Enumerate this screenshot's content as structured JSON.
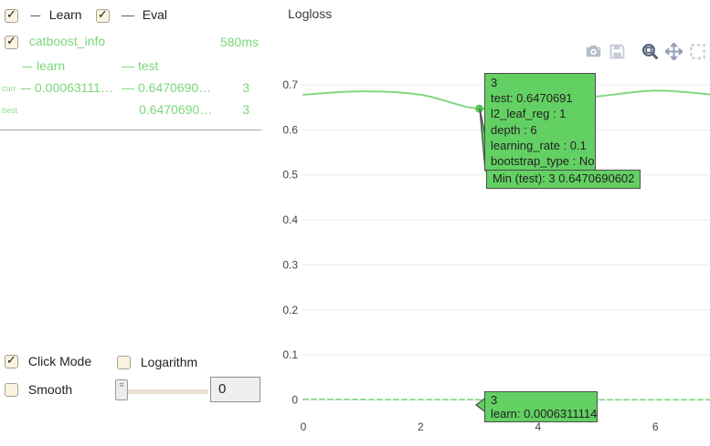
{
  "colors": {
    "accent_green_text": "#7bd67b",
    "curve_test": "#7fd87f",
    "curve_learn": "#8fdf8f",
    "tooltip_bg": "#63d063",
    "tooltip_border": "#4d4d4d"
  },
  "legend": {
    "items": [
      {
        "dash": "---",
        "label": "Learn",
        "checked": true
      },
      {
        "dash": "—",
        "label": "Eval",
        "checked": true
      }
    ]
  },
  "series_panel": {
    "name": "catboost_info",
    "time": "580ms",
    "checked": true,
    "columns": {
      "learn_dash": "---",
      "learn": "learn",
      "test_dash": "—",
      "test": "test"
    },
    "rows": {
      "curr": {
        "tag": "curr",
        "learn_dash": "---",
        "learn": "0.00063111…",
        "test_dash": "—",
        "test": "0.6470690…",
        "iteration": "3"
      },
      "best": {
        "tag": "best",
        "test": "0.6470690…",
        "iteration": "3"
      }
    }
  },
  "controls": {
    "click_mode": {
      "label": "Click Mode",
      "checked": true
    },
    "logarithm": {
      "label": "Logarithm",
      "checked": false
    },
    "smooth": {
      "label": "Smooth",
      "checked": false
    },
    "slider": {
      "value": "0"
    }
  },
  "chart": {
    "title": "Logloss",
    "modebar": [
      "camera",
      "save",
      "zoom",
      "pan",
      "box-select"
    ]
  },
  "tooltips": {
    "test": {
      "lines": [
        "3",
        "test: 0.6470691",
        "l2_leaf_reg : 1",
        "depth : 6",
        "learning_rate : 0.1",
        "bootstrap_type : No"
      ],
      "min_line": "Min (test): 3 0.6470690602"
    },
    "learn": {
      "lines": [
        "3",
        "learn: 0.0006311114"
      ]
    }
  },
  "chart_data": {
    "type": "line",
    "title": "Logloss",
    "xlabel": "",
    "ylabel": "",
    "xlim": [
      0,
      7
    ],
    "ylim": [
      0,
      0.7
    ],
    "grid": "horizontal",
    "xticks": [
      {
        "v": 0,
        "label": "0"
      },
      {
        "v": 2,
        "label": "2"
      },
      {
        "v": 4,
        "label": "4"
      },
      {
        "v": 6,
        "label": "6"
      }
    ],
    "yticks": [
      {
        "v": 0,
        "label": "0"
      },
      {
        "v": 0.1,
        "label": "0.1"
      },
      {
        "v": 0.2,
        "label": "0.2"
      },
      {
        "v": 0.3,
        "label": "0.3"
      },
      {
        "v": 0.4,
        "label": "0.4"
      },
      {
        "v": 0.5,
        "label": "0.5"
      },
      {
        "v": 0.6,
        "label": "0.6"
      },
      {
        "v": 0.7,
        "label": "0.7"
      }
    ],
    "series": [
      {
        "name": "test",
        "style": "solid",
        "color": "#7fd87f",
        "x": [
          0,
          1,
          2,
          3,
          4,
          5,
          6,
          7
        ],
        "y": [
          0.678,
          0.6855,
          0.678,
          0.6470691,
          0.662,
          0.674,
          0.687,
          0.678
        ]
      },
      {
        "name": "learn",
        "style": "dashed",
        "color": "#8fdf8f",
        "x": [
          0,
          1,
          2,
          3,
          4,
          5,
          6,
          7
        ],
        "y": [
          0.0013,
          0.0009,
          0.0007,
          0.0006311114,
          0.0006,
          0.0006,
          0.0006,
          0.0006
        ]
      }
    ],
    "marker": {
      "series": "test",
      "x": 3,
      "y": 0.6470691,
      "color": "#57c757"
    },
    "annotations": [
      "tooltip at iteration 3 on test curve",
      "tooltip at iteration 3 on learn curve",
      "Min (test): 3 0.6470690602"
    ]
  }
}
